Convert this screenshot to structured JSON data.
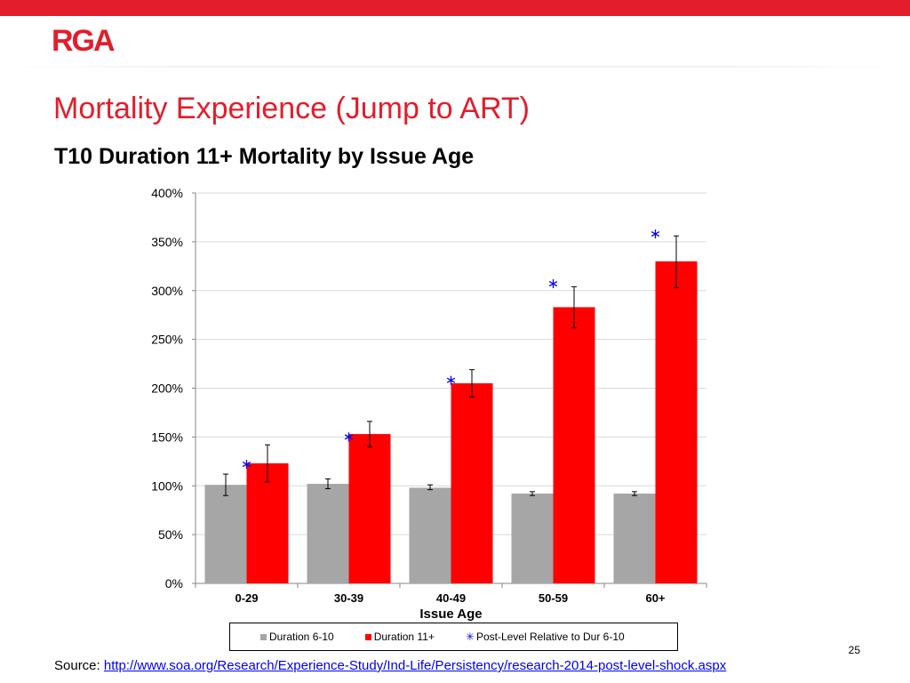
{
  "brand": {
    "logo_text": "RGA",
    "accent_color": "#e31d2b",
    "series_red": "#ff0000",
    "series_grey": "#a6a6a6",
    "marker_blue": "#0000ff"
  },
  "slide": {
    "title": "Mortality Experience (Jump to ART)",
    "subtitle": "T10 Duration 11+ Mortality by Issue Age",
    "page_number": "25"
  },
  "source": {
    "label": "Source:",
    "url_text": "http://www.soa.org/Research/Experience-Study/Ind-Life/Persistency/research-2014-post-level-shock.aspx"
  },
  "chart_data": {
    "type": "bar",
    "title": "",
    "xlabel": "Issue Age",
    "ylabel": "",
    "categories": [
      "0-29",
      "30-39",
      "40-49",
      "50-59",
      "60+"
    ],
    "ylim": [
      0,
      400
    ],
    "yticks": [
      0,
      50,
      100,
      150,
      200,
      250,
      300,
      350,
      400
    ],
    "ytick_labels": [
      "0%",
      "50%",
      "100%",
      "150%",
      "200%",
      "250%",
      "300%",
      "350%",
      "400%"
    ],
    "grid": true,
    "legend_position": "bottom",
    "series": [
      {
        "name": "Duration 6-10",
        "type": "bar",
        "color": "#a6a6a6",
        "values": [
          101,
          102,
          98,
          92,
          92
        ],
        "error_low": [
          90,
          97,
          96,
          90,
          90
        ],
        "error_high": [
          112,
          107,
          101,
          94,
          94
        ]
      },
      {
        "name": "Duration 11+",
        "type": "bar",
        "color": "#ff0000",
        "values": [
          123,
          153,
          205,
          283,
          330
        ],
        "error_low": [
          104,
          140,
          191,
          262,
          303
        ],
        "error_high": [
          142,
          166,
          219,
          304,
          356
        ]
      },
      {
        "name": "Post-Level Relative to Dur 6-10",
        "type": "marker",
        "color": "#0000ff",
        "values": [
          122,
          150,
          208,
          307,
          358
        ]
      }
    ]
  }
}
